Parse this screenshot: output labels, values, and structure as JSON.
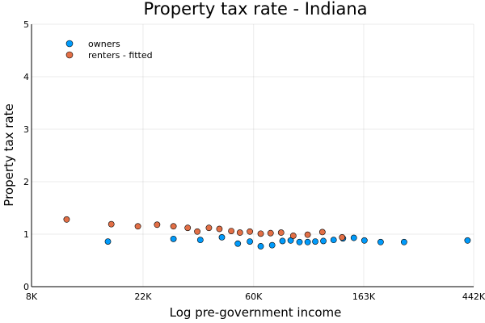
{
  "chart_data": {
    "type": "scatter",
    "title": "Property tax rate - Indiana",
    "xlabel": "Log pre-government income",
    "ylabel": "Property tax rate",
    "x_scale": "log",
    "xlim": [
      8000,
      442000
    ],
    "ylim": [
      0,
      5
    ],
    "x_ticks": [
      {
        "value": 8000,
        "label": "8K"
      },
      {
        "value": 22000,
        "label": "22K"
      },
      {
        "value": 60000,
        "label": "60K"
      },
      {
        "value": 163000,
        "label": "163K"
      },
      {
        "value": 442000,
        "label": "442K"
      }
    ],
    "y_ticks": [
      {
        "value": 0,
        "label": "0"
      },
      {
        "value": 1,
        "label": "1"
      },
      {
        "value": 2,
        "label": "2"
      },
      {
        "value": 3,
        "label": "3"
      },
      {
        "value": 4,
        "label": "4"
      },
      {
        "value": 5,
        "label": "5"
      }
    ],
    "grid": true,
    "legend_position": "top-left",
    "series": [
      {
        "name": "owners",
        "color": "#009AFA",
        "points": [
          [
            16000,
            0.86
          ],
          [
            29000,
            0.91
          ],
          [
            37000,
            0.89
          ],
          [
            45000,
            0.94
          ],
          [
            52000,
            0.82
          ],
          [
            58000,
            0.86
          ],
          [
            64000,
            0.77
          ],
          [
            71000,
            0.79
          ],
          [
            78000,
            0.87
          ],
          [
            84000,
            0.88
          ],
          [
            91000,
            0.85
          ],
          [
            98000,
            0.85
          ],
          [
            105000,
            0.86
          ],
          [
            113000,
            0.87
          ],
          [
            124000,
            0.89
          ],
          [
            135000,
            0.92
          ],
          [
            149000,
            0.93
          ],
          [
            164000,
            0.88
          ],
          [
            190000,
            0.85
          ],
          [
            235000,
            0.85
          ],
          [
            418000,
            0.88
          ]
        ]
      },
      {
        "name": "renters - fitted",
        "color": "#E26F46",
        "points": [
          [
            11000,
            1.28
          ],
          [
            16500,
            1.19
          ],
          [
            21000,
            1.15
          ],
          [
            25000,
            1.18
          ],
          [
            29000,
            1.15
          ],
          [
            33000,
            1.12
          ],
          [
            36000,
            1.05
          ],
          [
            40000,
            1.12
          ],
          [
            44000,
            1.1
          ],
          [
            49000,
            1.06
          ],
          [
            53000,
            1.03
          ],
          [
            58000,
            1.05
          ],
          [
            64000,
            1.01
          ],
          [
            70000,
            1.02
          ],
          [
            77000,
            1.03
          ],
          [
            86000,
            0.97
          ],
          [
            98000,
            0.99
          ],
          [
            112000,
            1.04
          ],
          [
            134000,
            0.94
          ]
        ]
      }
    ]
  }
}
